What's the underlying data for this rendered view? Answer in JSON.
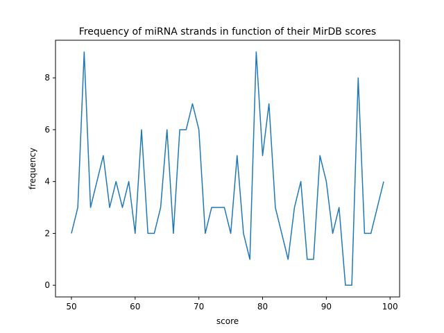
{
  "chart_data": {
    "type": "line",
    "title": "Frequency of miRNA strands in function of their MirDB scores",
    "xlabel": "score",
    "ylabel": "frequency",
    "xlim": [
      47.5,
      101.5
    ],
    "ylim": [
      -0.45,
      9.45
    ],
    "xticks": [
      50,
      60,
      70,
      80,
      90,
      100
    ],
    "yticks": [
      0,
      2,
      4,
      6,
      8
    ],
    "grid": false,
    "series": [
      {
        "color": "#1f77b4",
        "x": [
          50,
          51,
          52,
          53,
          54,
          55,
          56,
          57,
          58,
          59,
          60,
          61,
          62,
          63,
          64,
          65,
          66,
          67,
          68,
          69,
          70,
          71,
          72,
          73,
          74,
          75,
          76,
          77,
          78,
          79,
          80,
          81,
          82,
          83,
          84,
          85,
          86,
          87,
          88,
          89,
          90,
          91,
          92,
          93,
          94,
          95,
          96,
          97,
          98,
          99
        ],
        "y": [
          2,
          3,
          9,
          3,
          4,
          5,
          3,
          4,
          3,
          4,
          2,
          6,
          2,
          2,
          3,
          6,
          2,
          6,
          6,
          7,
          6,
          2,
          3,
          3,
          3,
          2,
          5,
          2,
          1,
          9,
          5,
          7,
          3,
          2,
          1,
          3,
          4,
          1,
          1,
          5,
          4,
          2,
          3,
          0,
          0,
          8,
          2,
          2,
          3,
          4
        ]
      }
    ]
  }
}
